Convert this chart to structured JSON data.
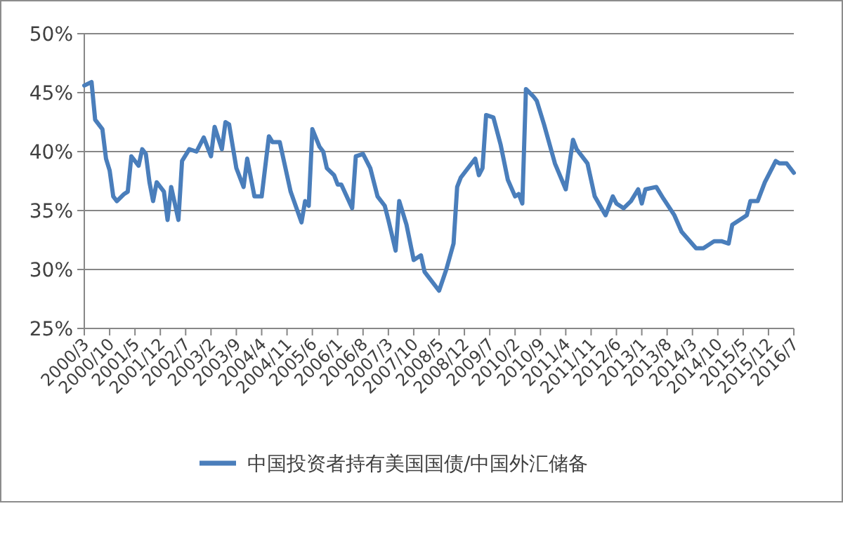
{
  "chart_data": {
    "type": "line",
    "x": [
      "2000-03",
      "2000-05",
      "2000-06",
      "2000-08",
      "2000-09",
      "2000-10",
      "2000-11",
      "2000-12",
      "2001-02",
      "2001-03",
      "2001-04",
      "2001-06",
      "2001-07",
      "2001-08",
      "2001-09",
      "2001-10",
      "2001-11",
      "2002-01",
      "2002-02",
      "2002-03",
      "2002-05",
      "2002-06",
      "2002-08",
      "2002-10",
      "2002-12",
      "2003-02",
      "2003-03",
      "2003-05",
      "2003-06",
      "2003-07",
      "2003-09",
      "2003-11",
      "2003-12",
      "2004-02",
      "2004-04",
      "2004-06",
      "2004-07",
      "2004-09",
      "2004-12",
      "2005-03",
      "2005-04",
      "2005-05",
      "2005-06",
      "2005-08",
      "2005-09",
      "2005-10",
      "2005-12",
      "2006-01",
      "2006-02",
      "2006-05",
      "2006-06",
      "2006-08",
      "2006-10",
      "2006-12",
      "2007-02",
      "2007-03",
      "2007-05",
      "2007-06",
      "2007-08",
      "2007-10",
      "2007-12",
      "2008-01",
      "2008-05",
      "2008-07",
      "2008-09",
      "2008-10",
      "2008-11",
      "2009-01",
      "2009-03",
      "2009-04",
      "2009-05",
      "2009-06",
      "2009-08",
      "2009-10",
      "2009-12",
      "2010-02",
      "2010-03",
      "2010-04",
      "2010-05",
      "2010-07",
      "2010-08",
      "2010-10",
      "2011-01",
      "2011-04",
      "2011-06",
      "2011-07",
      "2011-09",
      "2011-10",
      "2011-12",
      "2012-03",
      "2012-05",
      "2012-06",
      "2012-08",
      "2012-10",
      "2012-12",
      "2013-01",
      "2013-02",
      "2013-05",
      "2013-07",
      "2013-10",
      "2013-12",
      "2014-04",
      "2014-06",
      "2014-09",
      "2014-11",
      "2015-01",
      "2015-02",
      "2015-06",
      "2015-07",
      "2015-09",
      "2015-11",
      "2016-02",
      "2016-03",
      "2016-05",
      "2016-07"
    ],
    "series": [
      {
        "name": "中国投资者持有美国国债/中国外汇储备",
        "color": "#4a7ebb",
        "values": [
          45.6,
          45.9,
          42.7,
          41.9,
          39.4,
          38.4,
          36.2,
          35.8,
          36.4,
          36.6,
          39.6,
          38.8,
          40.2,
          39.8,
          37.4,
          35.8,
          37.4,
          36.6,
          34.2,
          37.0,
          34.2,
          39.2,
          40.2,
          40.0,
          41.2,
          39.6,
          42.1,
          40.2,
          42.5,
          42.3,
          38.6,
          37.0,
          39.4,
          36.2,
          36.2,
          41.3,
          40.8,
          40.8,
          36.6,
          34.0,
          35.8,
          35.4,
          41.9,
          40.4,
          40.0,
          38.6,
          38.0,
          37.2,
          37.2,
          35.2,
          39.6,
          39.8,
          38.6,
          36.2,
          35.4,
          34.2,
          31.6,
          35.8,
          33.8,
          30.8,
          31.2,
          29.8,
          28.2,
          30.0,
          32.2,
          37.0,
          37.8,
          38.6,
          39.4,
          38.0,
          38.6,
          43.1,
          42.9,
          40.6,
          37.6,
          36.2,
          36.4,
          35.6,
          45.3,
          44.7,
          44.3,
          42.3,
          39.0,
          36.8,
          41.0,
          40.2,
          39.4,
          39.0,
          36.2,
          34.6,
          36.2,
          35.6,
          35.2,
          35.8,
          36.8,
          35.6,
          36.8,
          37.0,
          36.0,
          34.6,
          33.2,
          31.8,
          31.8,
          32.4,
          32.4,
          32.2,
          33.8,
          34.6,
          35.8,
          35.8,
          37.4,
          39.2,
          39.0,
          39.0,
          38.2
        ]
      }
    ],
    "xlim": [
      "2000-03",
      "2016-07"
    ],
    "xticks": [
      {
        "value": "2000-03",
        "label": "2000/3"
      },
      {
        "value": "2000-10",
        "label": "2000/10"
      },
      {
        "value": "2001-05",
        "label": "2001/5"
      },
      {
        "value": "2001-12",
        "label": "2001/12"
      },
      {
        "value": "2002-07",
        "label": "2002/7"
      },
      {
        "value": "2003-02",
        "label": "2003/2"
      },
      {
        "value": "2003-09",
        "label": "2003/9"
      },
      {
        "value": "2004-04",
        "label": "2004/4"
      },
      {
        "value": "2004-11",
        "label": "2004/11"
      },
      {
        "value": "2005-06",
        "label": "2005/6"
      },
      {
        "value": "2006-01",
        "label": "2006/1"
      },
      {
        "value": "2006-08",
        "label": "2006/8"
      },
      {
        "value": "2007-03",
        "label": "2007/3"
      },
      {
        "value": "2007-10",
        "label": "2007/10"
      },
      {
        "value": "2008-05",
        "label": "2008/5"
      },
      {
        "value": "2008-12",
        "label": "2008/12"
      },
      {
        "value": "2009-07",
        "label": "2009/7"
      },
      {
        "value": "2010-02",
        "label": "2010/2"
      },
      {
        "value": "2010-09",
        "label": "2010/9"
      },
      {
        "value": "2011-04",
        "label": "2011/4"
      },
      {
        "value": "2011-11",
        "label": "2011/11"
      },
      {
        "value": "2012-06",
        "label": "2012/6"
      },
      {
        "value": "2013-01",
        "label": "2013/1"
      },
      {
        "value": "2013-08",
        "label": "2013/8"
      },
      {
        "value": "2014-03",
        "label": "2014/3"
      },
      {
        "value": "2014-10",
        "label": "2014/10"
      },
      {
        "value": "2015-05",
        "label": "2015/5"
      },
      {
        "value": "2015-12",
        "label": "2015/12"
      },
      {
        "value": "2016-07",
        "label": "2016/7"
      }
    ],
    "ylim": [
      25,
      50
    ],
    "yticks": [
      {
        "value": 25,
        "label": "25%"
      },
      {
        "value": 30,
        "label": "30%"
      },
      {
        "value": 35,
        "label": "35%"
      },
      {
        "value": 40,
        "label": "40%"
      },
      {
        "value": 45,
        "label": "45%"
      },
      {
        "value": 50,
        "label": "50%"
      }
    ],
    "grid": "y",
    "legend": "bottom",
    "marker": "none",
    "line_style": "solid"
  }
}
